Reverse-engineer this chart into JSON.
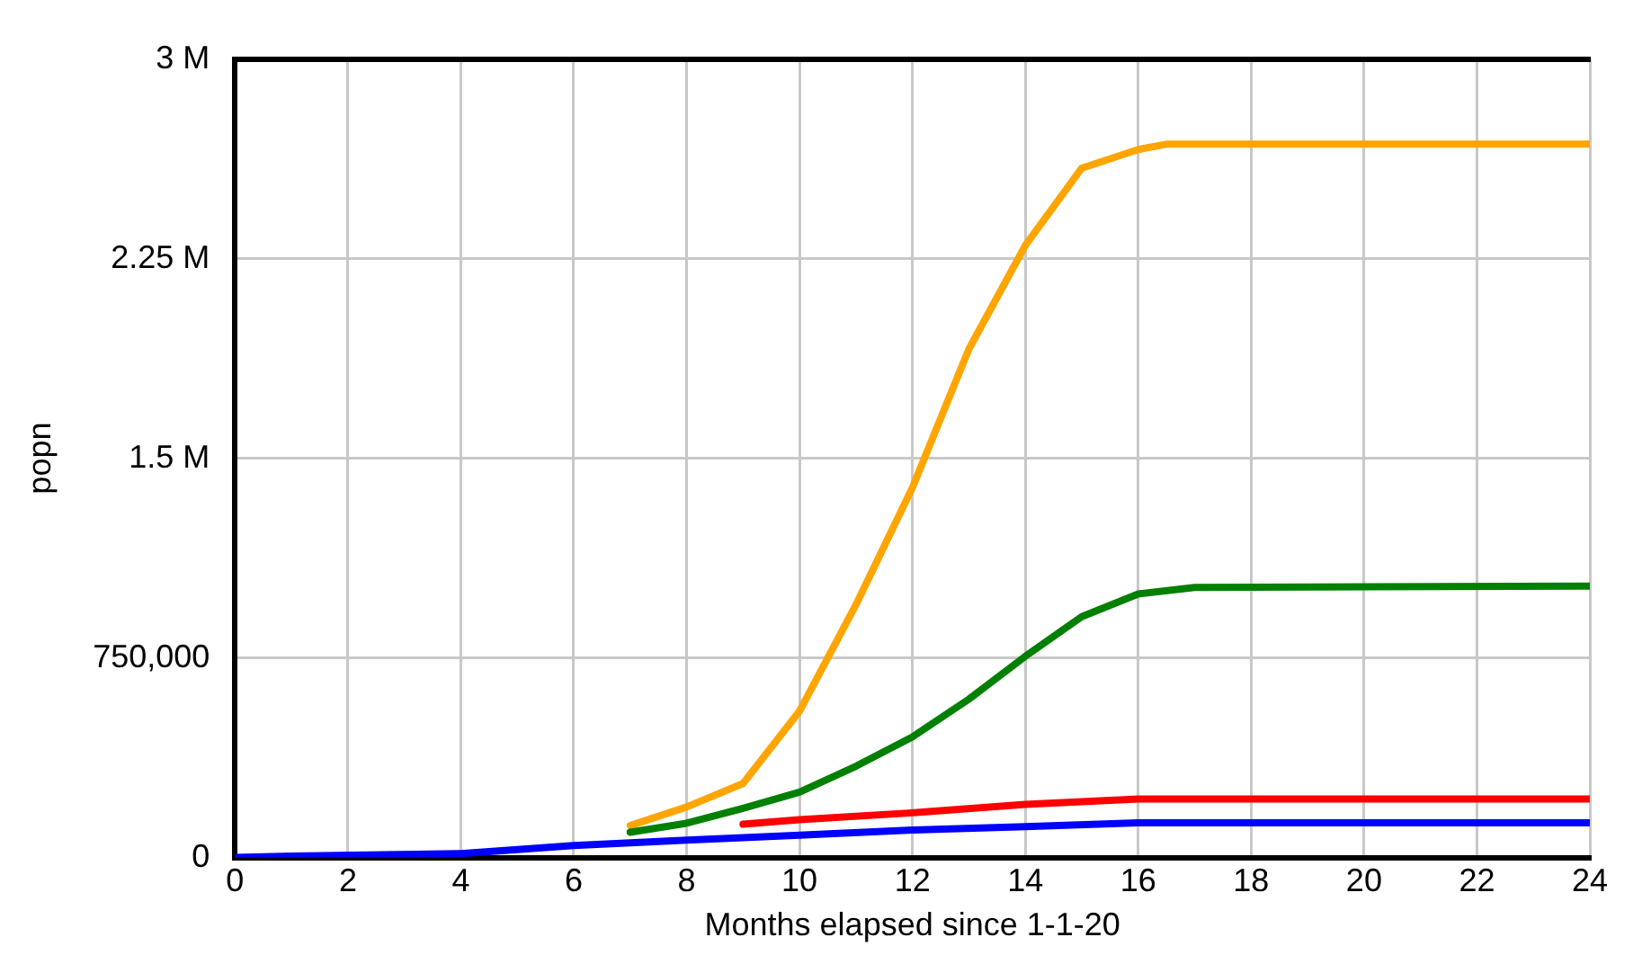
{
  "chart_data": {
    "type": "line",
    "xlabel": "Months elapsed since 1-1-20",
    "ylabel": "popn",
    "xlim": [
      0,
      24
    ],
    "xticks": [
      0,
      2,
      4,
      6,
      8,
      10,
      12,
      14,
      16,
      18,
      20,
      22,
      24
    ],
    "ylim": [
      0,
      3000000
    ],
    "yticks": [
      0,
      {
        "value": 750000,
        "label": "750,000"
      },
      {
        "value": 1500000,
        "label": "1.5 M"
      },
      {
        "value": 2250000,
        "label": "2.25 M"
      },
      {
        "value": 3000000,
        "label": "3 M"
      }
    ],
    "grid": true,
    "legend": false,
    "marker": "none",
    "line_style": "solid",
    "series": [
      {
        "color": "#ffa500",
        "x": [
          7,
          8,
          9,
          10,
          11,
          12,
          13,
          14,
          15,
          16,
          16.5,
          24
        ],
        "values": [
          120000,
          190000,
          278000,
          550000,
          950000,
          1390000,
          1910000,
          2300000,
          2590000,
          2660000,
          2680000,
          2680000
        ]
      },
      {
        "color": "#008000",
        "x": [
          7,
          8,
          9,
          10,
          11,
          12,
          13,
          14,
          15,
          16,
          17,
          24
        ],
        "values": [
          95000,
          129000,
          185000,
          246000,
          343000,
          453000,
          595000,
          756000,
          905000,
          990000,
          1015000,
          1020000
        ]
      },
      {
        "color": "#ff0000",
        "x": [
          9,
          10,
          12,
          14,
          16,
          24
        ],
        "values": [
          125000,
          142000,
          168000,
          200000,
          220000,
          220000
        ]
      },
      {
        "color": "#0000ff",
        "x": [
          0,
          1,
          4,
          6,
          8,
          10,
          12,
          14,
          16,
          24
        ],
        "values": [
          0,
          5000,
          15000,
          45000,
          65000,
          84000,
          103000,
          116000,
          130000,
          130000
        ]
      }
    ]
  }
}
